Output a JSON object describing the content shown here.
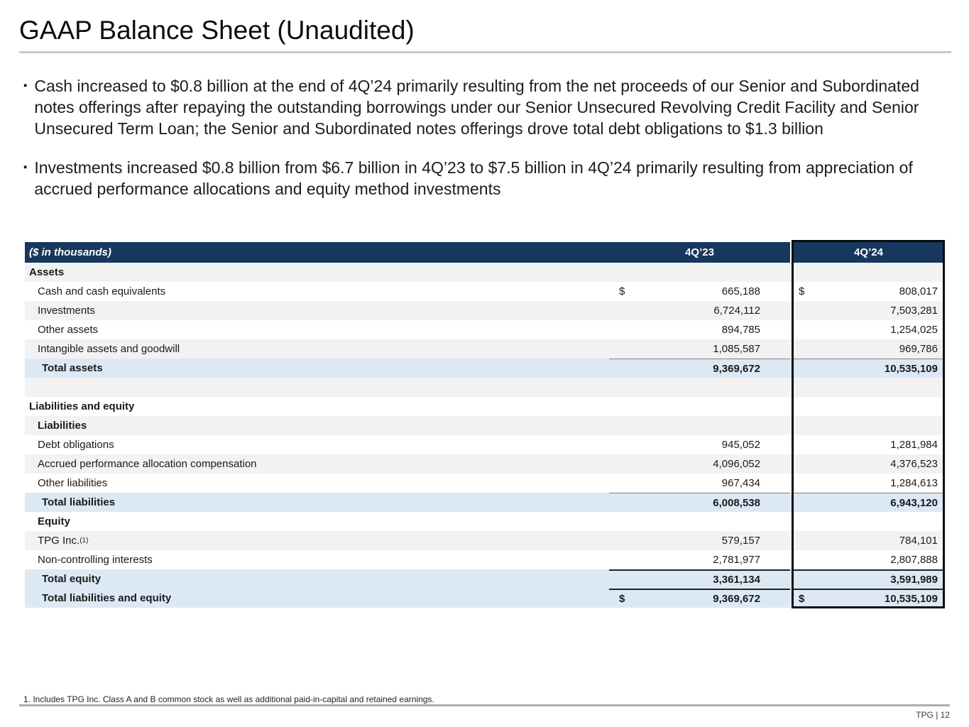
{
  "slide": {
    "title": "GAAP Balance Sheet (Unaudited)",
    "bullet_marker": "▪",
    "bullets": [
      "Cash increased to $0.8 billion at the end of 4Q’24 primarily resulting from the net proceeds of our Senior and Subordinated notes offerings after repaying the outstanding borrowings under our Senior Unsecured Revolving Credit Facility and Senior Unsecured Term Loan; the Senior and Subordinated notes offerings drove total debt obligations to $1.3 billion",
      "Investments increased $0.8 billion from $6.7 billion in 4Q’23 to $7.5 billion in 4Q’24 primarily resulting from appreciation of accrued performance allocations and equity method investments"
    ],
    "footnote": "1. Includes TPG Inc. Class A and B common stock as well as additional paid-in-capital and retained earnings.",
    "page_label": "TPG | 12"
  },
  "colors": {
    "header_navy": "#17385e",
    "row_gray": "#f2f2f2",
    "total_blue": "#dce9f5",
    "highlight_border": "#0a0a0a"
  },
  "table": {
    "unit_label": "($ in thousands)",
    "columns": [
      "4Q’23",
      "4Q’24"
    ],
    "dollar_sign": "$",
    "rows": [
      {
        "label": "Assets",
        "type": "section",
        "indent": 0,
        "bg": "gray",
        "v23": "",
        "v24": ""
      },
      {
        "label": "Cash and cash equivalents",
        "type": "item",
        "indent": 1,
        "bg": "white",
        "v23": "665,188",
        "v24": "808,017",
        "dollar": true
      },
      {
        "label": "Investments",
        "type": "item",
        "indent": 1,
        "bg": "gray",
        "v23": "6,724,112",
        "v24": "7,503,281"
      },
      {
        "label": "Other assets",
        "type": "item",
        "indent": 1,
        "bg": "white",
        "v23": "894,785",
        "v24": "1,254,025"
      },
      {
        "label": "Intangible assets and goodwill",
        "type": "item",
        "indent": 1,
        "bg": "gray",
        "v23": "1,085,587",
        "v24": "969,786"
      },
      {
        "label": "Total assets",
        "type": "total",
        "indent": 2,
        "bg": "blue",
        "v23": "9,369,672",
        "v24": "10,535,109",
        "topline": "gray"
      },
      {
        "label": "",
        "type": "blank",
        "indent": 0,
        "bg": "gray",
        "v23": "",
        "v24": ""
      },
      {
        "label": "Liabilities and equity",
        "type": "section",
        "indent": 0,
        "bg": "white",
        "v23": "",
        "v24": ""
      },
      {
        "label": "Liabilities",
        "type": "section",
        "indent": 1,
        "bg": "gray",
        "v23": "",
        "v24": ""
      },
      {
        "label": "Debt obligations",
        "type": "item",
        "indent": 1,
        "bg": "white",
        "v23": "945,052",
        "v24": "1,281,984"
      },
      {
        "label": "Accrued performance allocation compensation",
        "type": "item",
        "indent": 1,
        "bg": "gray",
        "v23": "4,096,052",
        "v24": "4,376,523"
      },
      {
        "label": "Other liabilities",
        "type": "item",
        "indent": 1,
        "bg": "white",
        "v23": "967,434",
        "v24": "1,284,613"
      },
      {
        "label": "Total liabilities",
        "type": "total",
        "indent": 2,
        "bg": "blue",
        "v23": "6,008,538",
        "v24": "6,943,120",
        "topline": "gray"
      },
      {
        "label": "Equity",
        "type": "section",
        "indent": 1,
        "bg": "white",
        "v23": "",
        "v24": ""
      },
      {
        "label": "TPG Inc.",
        "sup": "(1)",
        "type": "item",
        "indent": 1,
        "bg": "gray",
        "v23": "579,157",
        "v24": "784,101"
      },
      {
        "label": "Non-controlling interests",
        "type": "item",
        "indent": 1,
        "bg": "white",
        "v23": "2,781,977",
        "v24": "2,807,888"
      },
      {
        "label": "Total equity",
        "type": "total",
        "indent": 2,
        "bg": "blue",
        "v23": "3,361,134",
        "v24": "3,591,989",
        "topline": "dark"
      },
      {
        "label": "Total liabilities and equity",
        "type": "total",
        "indent": 2,
        "bg": "blue",
        "v23": "9,369,672",
        "v24": "10,535,109",
        "dollar": true,
        "topline": "dark"
      }
    ]
  }
}
